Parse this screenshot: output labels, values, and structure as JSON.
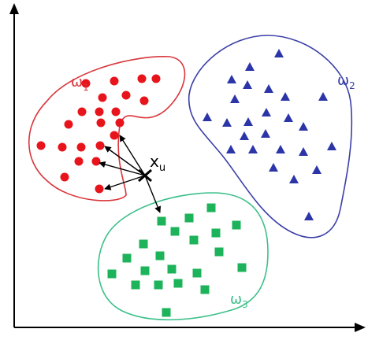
{
  "diagram": {
    "colors": {
      "axis": "#000000",
      "class1": "#e8141c",
      "class2": "#2b35a8",
      "class3": "#1cb35a",
      "class3_outline": "#3cc08a",
      "arrow": "#000000"
    },
    "clusters": [
      {
        "id": "omega1",
        "label_main": "ω",
        "label_sub": "1",
        "marker": "circle"
      },
      {
        "id": "omega2",
        "label_main": "ω",
        "label_sub": "2",
        "marker": "triangle"
      },
      {
        "id": "omega3",
        "label_main": "ω",
        "label_sub": "3",
        "marker": "square"
      }
    ],
    "query_point": {
      "label_main": "x",
      "label_sub": "u",
      "marker": "cross"
    },
    "axes": {
      "x_arrow": true,
      "y_arrow": true
    }
  }
}
